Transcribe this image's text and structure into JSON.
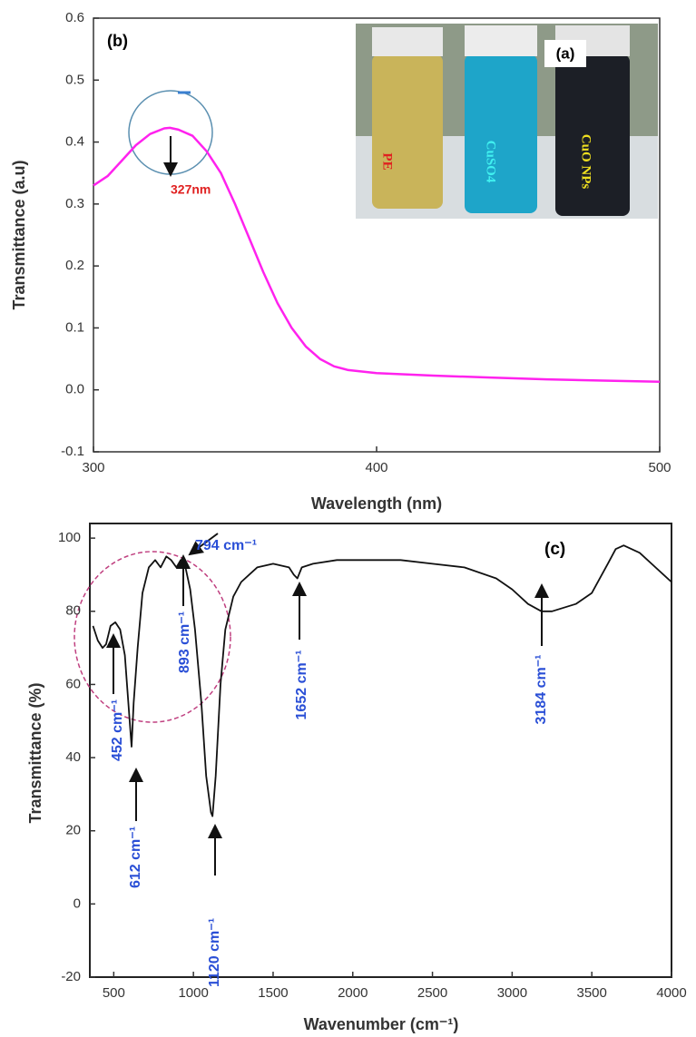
{
  "chart_data": [
    {
      "type": "line",
      "x": [
        300,
        305,
        310,
        315,
        320,
        325,
        327,
        330,
        335,
        340,
        345,
        350,
        355,
        360,
        365,
        370,
        375,
        380,
        385,
        390,
        400,
        420,
        440,
        460,
        480,
        500
      ],
      "values": [
        0.33,
        0.345,
        0.37,
        0.395,
        0.413,
        0.422,
        0.423,
        0.42,
        0.41,
        0.385,
        0.35,
        0.3,
        0.245,
        0.19,
        0.14,
        0.1,
        0.07,
        0.05,
        0.038,
        0.032,
        0.027,
        0.023,
        0.02,
        0.017,
        0.015,
        0.013
      ],
      "color": "#ff22ee",
      "xlabel": "Wavelength (nm)",
      "ylabel": "Transmittance (a.u)",
      "xlim": [
        300,
        500
      ],
      "xticks": [
        300,
        400,
        500
      ],
      "ylim": [
        -0.1,
        0.6
      ],
      "yticks": [
        -0.1,
        {
          "value": 0,
          "label": "0.0"
        },
        0.1,
        0.2,
        0.3,
        0.4,
        0.5,
        0.6
      ],
      "annotations": [
        "(b)",
        "327nm",
        "(a)",
        "PE",
        "CuSO4",
        "CuO NPs"
      ]
    },
    {
      "type": "line",
      "x": [
        370,
        400,
        430,
        452,
        480,
        510,
        540,
        570,
        600,
        612,
        625,
        650,
        680,
        720,
        760,
        794,
        830,
        860,
        893,
        920,
        950,
        980,
        1010,
        1050,
        1080,
        1110,
        1120,
        1140,
        1170,
        1200,
        1250,
        1300,
        1400,
        1500,
        1600,
        1630,
        1652,
        1680,
        1750,
        1900,
        2100,
        2300,
        2500,
        2700,
        2900,
        3000,
        3100,
        3184,
        3250,
        3400,
        3500,
        3600,
        3650,
        3700,
        3800,
        3900,
        4000
      ],
      "values": [
        76,
        72,
        70,
        71,
        76,
        77,
        75,
        68,
        50,
        43,
        55,
        70,
        85,
        92,
        94,
        92,
        95,
        94,
        92,
        94,
        92,
        86,
        75,
        55,
        35,
        25,
        24,
        35,
        60,
        75,
        84,
        88,
        92,
        93,
        92,
        90,
        89,
        92,
        93,
        94,
        94,
        94,
        93,
        92,
        89,
        86,
        82,
        80,
        80,
        82,
        85,
        93,
        97,
        98,
        96,
        92,
        88
      ],
      "color": "#111111",
      "xlabel": "Wavenumber (cm⁻¹)",
      "ylabel": "Transmittance (%)",
      "xlim": [
        350,
        4000
      ],
      "xticks": [
        500,
        1000,
        1500,
        2000,
        2500,
        3000,
        3500,
        4000
      ],
      "ylim": [
        -20,
        104
      ],
      "yticks": [
        -20,
        0,
        20,
        40,
        60,
        80,
        100
      ],
      "annotations": [
        "(c)",
        "794 cm⁻¹",
        "893 cm⁻¹",
        "452 cm⁻¹",
        "612 cm⁻¹",
        "1120 cm⁻¹",
        "1652 cm⁻¹",
        "3184 cm⁻¹"
      ]
    }
  ]
}
